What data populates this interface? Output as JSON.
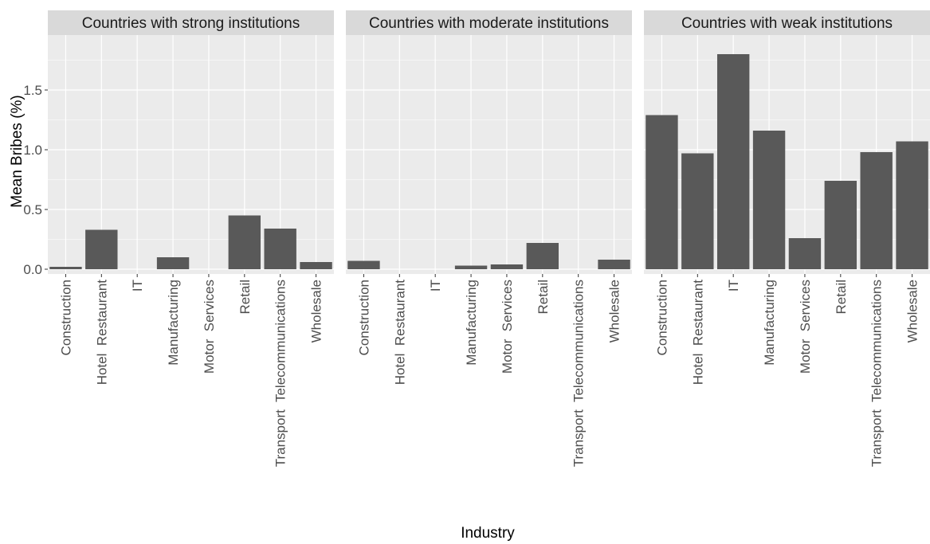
{
  "chart_data": {
    "type": "bar",
    "xlabel": "Industry",
    "ylabel": "Mean Bribes (%)",
    "ylim": [
      -0.04,
      1.96
    ],
    "yticks": [
      0.0,
      0.5,
      1.0,
      1.5
    ],
    "ytick_labels": [
      "0.0",
      "0.5",
      "1.0",
      "1.5"
    ],
    "grid": true,
    "bar_color": "#595959",
    "panel_background": "#ebebeb",
    "strip_background": "#d9d9d9",
    "categories": [
      "Construction",
      "Hotel  Restaurant",
      "IT",
      "Manufacturing",
      "Motor  Services",
      "Retail",
      "Transport  Telecommunications",
      "Wholesale"
    ],
    "panels": [
      {
        "title": "Countries with strong institutions",
        "values": [
          0.02,
          0.33,
          null,
          0.1,
          null,
          0.45,
          0.34,
          0.06
        ]
      },
      {
        "title": "Countries with moderate institutions",
        "values": [
          0.07,
          null,
          null,
          0.03,
          0.04,
          0.22,
          null,
          0.08
        ]
      },
      {
        "title": "Countries with weak institutions",
        "values": [
          1.29,
          0.97,
          1.8,
          1.16,
          0.26,
          0.74,
          0.98,
          1.07
        ]
      }
    ]
  }
}
